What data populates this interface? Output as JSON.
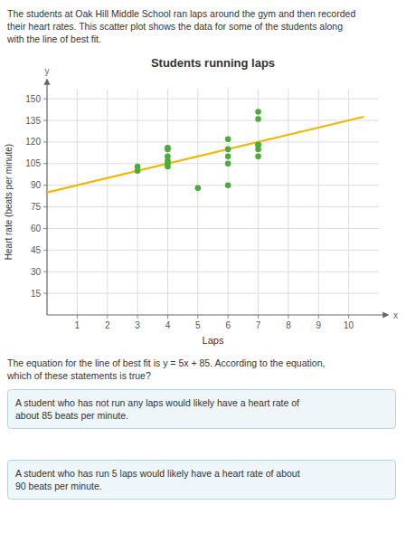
{
  "chart_data": {
    "type": "scatter",
    "title": "Students running laps",
    "x_label": "Laps",
    "y_label": "Heart rate (beats per minute)",
    "intro": "The students at Oak Hill Middle School ran laps around the gym and then recorded\ntheir heart rates. This scatter plot shows the data for some of the students along\nwith the line of best fit.",
    "question": "The equation for the line of best fit is y = 5x + 85. According to the equation,\nwhich of these statements is true?",
    "answers": [
      "A student who has not run any laps would likely have a heart rate of\nabout 85 beats per minute.",
      "A student who has run 5 laps would likely have a heart rate of about\n90 beats per minute."
    ],
    "axis_letters": [
      "x",
      "y"
    ],
    "series": [
      {
        "type": "scatter",
        "color": "#4aad36",
        "x": [
          3,
          3,
          4,
          4,
          4,
          4,
          4,
          4,
          5,
          6,
          6,
          6,
          6,
          6,
          7,
          7,
          7,
          7,
          7,
          7
        ],
        "values": [
          100,
          103,
          103,
          105,
          107,
          110,
          115,
          116,
          88,
          90,
          105,
          110,
          115,
          122,
          110,
          115,
          118,
          118,
          136,
          141
        ]
      },
      {
        "type": "line",
        "color": "#f0b800",
        "x": [
          0,
          10.5
        ],
        "values": [
          85,
          137.5
        ]
      }
    ],
    "xlim": [
      0,
      11
    ],
    "ylim": [
      0,
      157
    ],
    "xticks": [
      1,
      2,
      3,
      4,
      5,
      6,
      7,
      8,
      9,
      10
    ],
    "yticks": [
      15,
      30,
      45,
      60,
      75,
      90,
      105,
      120,
      135,
      150
    ],
    "grid": true
  }
}
